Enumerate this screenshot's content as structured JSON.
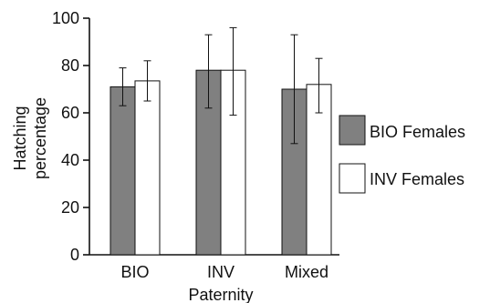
{
  "chart_data": {
    "type": "bar",
    "title": "",
    "xlabel": "Paternity",
    "ylabel_lines": [
      "Hatching",
      "percentage"
    ],
    "categories": [
      "BIO",
      "INV",
      "Mixed"
    ],
    "ylim": [
      0,
      100
    ],
    "yticks": [
      "0",
      "20",
      "40",
      "60",
      "80",
      "100"
    ],
    "grid": false,
    "legend_position": "right",
    "series": [
      {
        "name": "BIO Females",
        "color": "#808080",
        "values": [
          71,
          78,
          70
        ],
        "error_low": [
          63,
          62,
          47
        ],
        "error_high": [
          79,
          93,
          93
        ]
      },
      {
        "name": "INV Females",
        "color": "#ffffff",
        "values": [
          73.5,
          78,
          72
        ],
        "error_low": [
          65,
          59,
          60
        ],
        "error_high": [
          82,
          96,
          83
        ]
      }
    ]
  }
}
